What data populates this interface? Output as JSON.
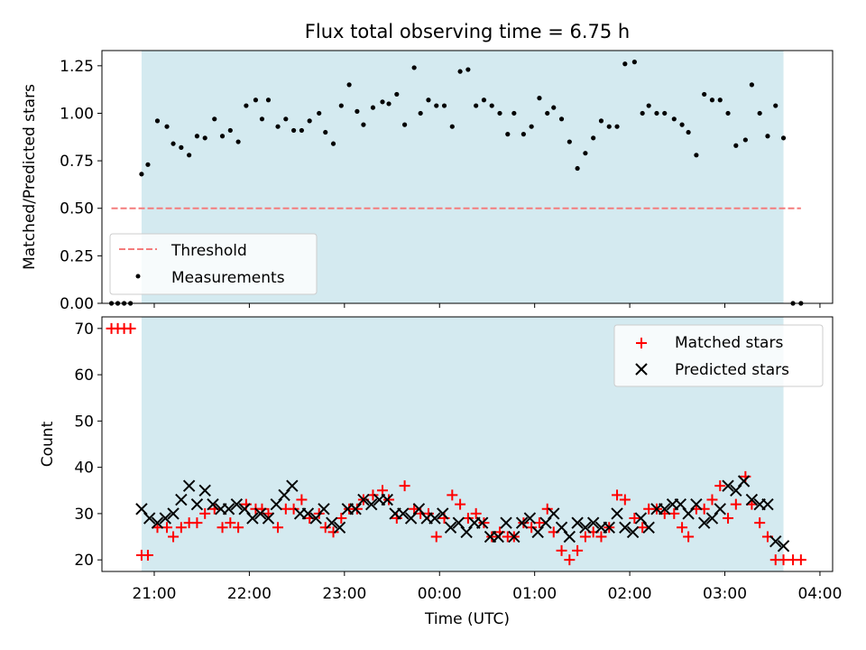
{
  "chart_data": [
    {
      "type": "scatter",
      "title": "Flux total observing time = 6.75 h",
      "xlabel": "",
      "ylabel": "Matched/Predicted stars",
      "xlim": [
        "20:27",
        "04:08"
      ],
      "ylim": [
        0,
        1.33
      ],
      "grid": false,
      "legend_placement": "lower-left",
      "shaded_span": [
        "20:52",
        "03:37"
      ],
      "shaded_color": "#d4eaf0",
      "yticks": [
        0.0,
        0.25,
        0.5,
        0.75,
        1.0,
        1.25
      ],
      "ytick_labels": [
        "0.00",
        "0.25",
        "0.50",
        "0.75",
        "1.00",
        "1.25"
      ],
      "xtick_labels": [
        "21:00",
        "22:00",
        "23:00",
        "00:00",
        "01:00",
        "02:00",
        "03:00",
        "04:00"
      ],
      "series": [
        {
          "name": "Threshold",
          "style": "dashed-line",
          "color": "#f47c7c",
          "x": [
            "20:33",
            "03:48"
          ],
          "y": [
            0.5,
            0.5
          ]
        },
        {
          "name": "Measurements",
          "style": "dot",
          "color": "#000000",
          "x": [
            "20:33",
            "20:37",
            "20:41",
            "20:45",
            "20:52",
            "20:56",
            "21:02",
            "21:08",
            "21:12",
            "21:17",
            "21:22",
            "21:27",
            "21:32",
            "21:38",
            "21:43",
            "21:48",
            "21:53",
            "21:58",
            "22:04",
            "22:08",
            "22:12",
            "22:18",
            "22:23",
            "22:28",
            "22:33",
            "22:38",
            "22:44",
            "22:48",
            "22:53",
            "22:58",
            "23:03",
            "23:08",
            "23:12",
            "23:18",
            "23:24",
            "23:28",
            "23:33",
            "23:38",
            "23:44",
            "23:48",
            "23:53",
            "23:58",
            "00:03",
            "00:08",
            "00:13",
            "00:18",
            "00:23",
            "00:28",
            "00:33",
            "00:38",
            "00:43",
            "00:47",
            "00:53",
            "00:58",
            "01:03",
            "01:08",
            "01:12",
            "01:17",
            "01:22",
            "01:27",
            "01:32",
            "01:37",
            "01:42",
            "01:47",
            "01:52",
            "01:57",
            "02:03",
            "02:08",
            "02:12",
            "02:17",
            "02:22",
            "02:28",
            "02:33",
            "02:37",
            "02:42",
            "02:47",
            "02:52",
            "02:57",
            "03:02",
            "03:07",
            "03:13",
            "03:17",
            "03:22",
            "03:27",
            "03:32",
            "03:37",
            "03:43",
            "03:48"
          ],
          "y": [
            0.0,
            0.0,
            0.0,
            0.0,
            0.68,
            0.73,
            0.96,
            0.93,
            0.84,
            0.82,
            0.78,
            0.88,
            0.87,
            0.97,
            0.88,
            0.91,
            0.85,
            1.04,
            1.07,
            0.97,
            1.07,
            0.93,
            0.97,
            0.91,
            0.91,
            0.96,
            1.0,
            0.9,
            0.84,
            1.04,
            1.15,
            1.01,
            0.94,
            1.03,
            1.06,
            1.05,
            1.1,
            0.94,
            1.24,
            1.0,
            1.07,
            1.04,
            1.04,
            0.93,
            1.22,
            1.23,
            1.04,
            1.07,
            1.04,
            1.0,
            0.89,
            1.0,
            0.89,
            0.93,
            1.08,
            1.0,
            1.03,
            0.97,
            0.85,
            0.71,
            0.79,
            0.87,
            0.96,
            0.93,
            0.93,
            1.26,
            1.27,
            1.0,
            1.04,
            1.0,
            1.0,
            0.97,
            0.94,
            0.9,
            0.78,
            1.1,
            1.07,
            1.07,
            1.0,
            0.83,
            0.86,
            1.15,
            1.0,
            0.88,
            1.04,
            0.87,
            0.0,
            0.0
          ]
        }
      ]
    },
    {
      "type": "scatter",
      "title": "",
      "xlabel": "Time (UTC)",
      "ylabel": "Count",
      "xlim": [
        "20:27",
        "04:08"
      ],
      "ylim": [
        17.5,
        72.5
      ],
      "grid": false,
      "legend_placement": "top-right",
      "shaded_span": [
        "20:52",
        "03:37"
      ],
      "shaded_color": "#d4eaf0",
      "yticks": [
        20,
        30,
        40,
        50,
        60,
        70
      ],
      "ytick_labels": [
        "20",
        "30",
        "40",
        "50",
        "60",
        "70"
      ],
      "xtick_labels": [
        "21:00",
        "22:00",
        "23:00",
        "00:00",
        "01:00",
        "02:00",
        "03:00",
        "04:00"
      ],
      "series": [
        {
          "name": "Matched stars",
          "style": "plus",
          "color": "#ff0000",
          "x": [
            "20:33",
            "20:37",
            "20:41",
            "20:45",
            "20:52",
            "20:56",
            "21:02",
            "21:08",
            "21:12",
            "21:17",
            "21:22",
            "21:27",
            "21:32",
            "21:38",
            "21:43",
            "21:48",
            "21:53",
            "21:58",
            "22:04",
            "22:08",
            "22:12",
            "22:18",
            "22:23",
            "22:28",
            "22:33",
            "22:38",
            "22:44",
            "22:48",
            "22:53",
            "22:58",
            "23:03",
            "23:08",
            "23:12",
            "23:18",
            "23:24",
            "23:28",
            "23:33",
            "23:38",
            "23:44",
            "23:48",
            "23:53",
            "23:58",
            "00:03",
            "00:08",
            "00:13",
            "00:18",
            "00:23",
            "00:28",
            "00:33",
            "00:38",
            "00:43",
            "00:47",
            "00:53",
            "00:58",
            "01:03",
            "01:08",
            "01:12",
            "01:17",
            "01:22",
            "01:27",
            "01:32",
            "01:37",
            "01:42",
            "01:47",
            "01:52",
            "01:57",
            "02:03",
            "02:08",
            "02:12",
            "02:17",
            "02:22",
            "02:28",
            "02:33",
            "02:37",
            "02:42",
            "02:47",
            "02:52",
            "02:57",
            "03:02",
            "03:07",
            "03:13",
            "03:17",
            "03:22",
            "03:27",
            "03:32",
            "03:37",
            "03:43",
            "03:48"
          ],
          "y": [
            70,
            70,
            70,
            70,
            21,
            21,
            27,
            27,
            25,
            27,
            28,
            28,
            30,
            31,
            27,
            28,
            27,
            32,
            31,
            31,
            30,
            27,
            31,
            31,
            33,
            29,
            30,
            27,
            26,
            29,
            31,
            31,
            33,
            34,
            35,
            33,
            29,
            36,
            31,
            30,
            30,
            25,
            29,
            34,
            32,
            29,
            30,
            28,
            25,
            26,
            25,
            25,
            28,
            27,
            28,
            31,
            26,
            22,
            20,
            22,
            25,
            26,
            25,
            27,
            34,
            33,
            29,
            27,
            31,
            31,
            30,
            30,
            27,
            25,
            31,
            31,
            33,
            36,
            29,
            32,
            38,
            32,
            28,
            25,
            20,
            20,
            20,
            20
          ]
        },
        {
          "name": "Predicted stars",
          "style": "x",
          "color": "#000000",
          "x": [
            "20:52",
            "20:57",
            "21:02",
            "21:07",
            "21:12",
            "21:17",
            "21:22",
            "21:27",
            "21:32",
            "21:37",
            "21:42",
            "21:47",
            "21:52",
            "21:57",
            "22:02",
            "22:07",
            "22:12",
            "22:17",
            "22:22",
            "22:27",
            "22:32",
            "22:37",
            "22:42",
            "22:47",
            "22:52",
            "22:57",
            "23:02",
            "23:07",
            "23:12",
            "23:17",
            "23:22",
            "23:27",
            "23:32",
            "23:37",
            "23:42",
            "23:47",
            "23:52",
            "23:57",
            "00:02",
            "00:07",
            "00:12",
            "00:17",
            "00:22",
            "00:27",
            "00:32",
            "00:37",
            "00:42",
            "00:47",
            "00:52",
            "00:57",
            "01:02",
            "01:07",
            "01:12",
            "01:17",
            "01:22",
            "01:27",
            "01:32",
            "01:37",
            "01:42",
            "01:47",
            "01:52",
            "01:57",
            "02:02",
            "02:07",
            "02:12",
            "02:17",
            "02:22",
            "02:27",
            "02:32",
            "02:37",
            "02:42",
            "02:47",
            "02:52",
            "02:57",
            "03:02",
            "03:07",
            "03:12",
            "03:17",
            "03:22",
            "03:27",
            "03:32",
            "03:37"
          ],
          "y": [
            31,
            29,
            28,
            29,
            30,
            33,
            36,
            32,
            35,
            32,
            31,
            31,
            32,
            31,
            29,
            30,
            29,
            32,
            34,
            36,
            30,
            30,
            29,
            31,
            28,
            27,
            31,
            31,
            33,
            32,
            33,
            33,
            30,
            30,
            29,
            31,
            29,
            29,
            30,
            27,
            28,
            26,
            28,
            28,
            25,
            25,
            28,
            25,
            28,
            29,
            26,
            28,
            30,
            27,
            25,
            28,
            27,
            28,
            27,
            27,
            30,
            27,
            26,
            29,
            27,
            31,
            31,
            32,
            32,
            30,
            32,
            28,
            29,
            31,
            36,
            35,
            37,
            33,
            32,
            32,
            24,
            23
          ]
        }
      ]
    }
  ]
}
